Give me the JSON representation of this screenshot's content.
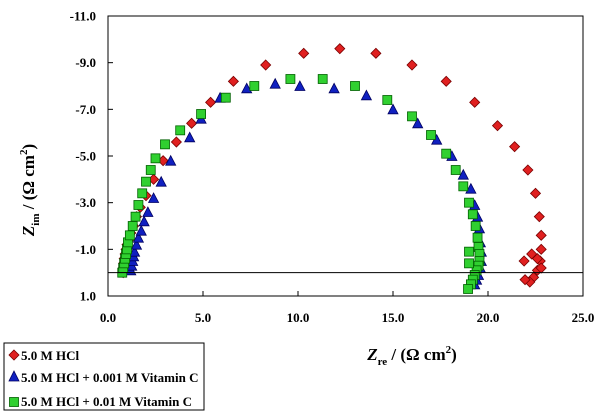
{
  "chart_data": {
    "type": "scatter",
    "x_axis": {
      "range": [
        0,
        25
      ],
      "ticks": [
        0,
        5,
        10,
        15,
        20,
        25
      ],
      "tick_labels": [
        "0.0",
        "5.0",
        "10.0",
        "15.0",
        "20.0",
        "25.0"
      ],
      "label_main": "Z",
      "label_sub": "re",
      "label_unit": " / (Ω cm",
      "label_sup": "2",
      "label_close": ")"
    },
    "y_axis": {
      "range": [
        1,
        -11
      ],
      "ticks": [
        1,
        -1,
        -3,
        -5,
        -7,
        -9,
        -11
      ],
      "tick_labels": [
        "1.0",
        "-1.0",
        "-3.0",
        "-5.0",
        "-7.0",
        "-9.0",
        "-11.0"
      ],
      "label_main": "Z",
      "label_sub": "im",
      "label_unit": " / (Ω cm",
      "label_sup": "2",
      "label_close": ")",
      "reference_line": 0
    },
    "grid": false,
    "legend_position": "bottom-left",
    "series": [
      {
        "name": "5.0 M HCl",
        "marker": "diamond",
        "color": "#e02020",
        "x": [
          0.8,
          0.8,
          0.82,
          0.85,
          0.9,
          0.95,
          1.0,
          1.1,
          1.2,
          1.35,
          1.5,
          1.7,
          2.0,
          2.4,
          2.9,
          3.6,
          4.4,
          5.4,
          6.6,
          8.3,
          10.3,
          12.2,
          14.1,
          16.0,
          17.8,
          19.3,
          20.5,
          21.4,
          22.1,
          22.5,
          22.7,
          22.8,
          22.8,
          22.75,
          22.6,
          22.4,
          22.2,
          21.95,
          21.9,
          22.3,
          22.6,
          22.8
        ],
        "y": [
          0.0,
          -0.2,
          -0.4,
          -0.6,
          -0.8,
          -1.0,
          -1.2,
          -1.4,
          -1.7,
          -2.0,
          -2.4,
          -2.8,
          -3.3,
          -4.0,
          -4.8,
          -5.6,
          -6.4,
          -7.3,
          -8.2,
          -8.9,
          -9.4,
          -9.6,
          -9.4,
          -8.9,
          -8.2,
          -7.3,
          -6.3,
          -5.4,
          -4.4,
          -3.4,
          -2.4,
          -1.6,
          -1.0,
          -0.5,
          -0.1,
          0.2,
          0.4,
          0.3,
          -0.5,
          -0.8,
          -0.6,
          -0.2
        ]
      },
      {
        "name": "5.0 M HCl + 0.001 M Vitamin C",
        "marker": "triangle",
        "color": "#1020c0",
        "x": [
          1.2,
          1.25,
          1.3,
          1.35,
          1.4,
          1.5,
          1.6,
          1.75,
          1.9,
          2.1,
          2.4,
          2.8,
          3.3,
          4.3,
          4.9,
          5.9,
          7.3,
          8.8,
          10.1,
          11.9,
          13.6,
          15.0,
          16.3,
          17.3,
          18.1,
          18.7,
          19.1,
          19.3,
          19.45,
          19.55,
          19.6,
          19.65,
          19.65,
          19.6,
          19.5,
          19.4,
          19.3
        ],
        "y": [
          -0.1,
          -0.3,
          -0.5,
          -0.7,
          -0.9,
          -1.2,
          -1.5,
          -1.8,
          -2.2,
          -2.6,
          -3.2,
          -3.9,
          -4.8,
          -5.8,
          -6.6,
          -7.5,
          -7.9,
          -8.1,
          -8.0,
          -7.9,
          -7.6,
          -7.0,
          -6.4,
          -5.7,
          -5.0,
          -4.2,
          -3.6,
          -2.9,
          -2.4,
          -1.9,
          -1.3,
          -0.9,
          -0.5,
          -0.2,
          0.1,
          0.3,
          0.5
        ]
      },
      {
        "name": "5.0 M HCl + 0.01 M Vitamin C",
        "marker": "square",
        "color": "#30d030",
        "x": [
          0.75,
          0.8,
          0.85,
          0.9,
          0.95,
          1.0,
          1.05,
          1.15,
          1.3,
          1.45,
          1.6,
          1.8,
          2.0,
          2.25,
          2.5,
          3.0,
          3.8,
          4.9,
          6.2,
          7.7,
          9.6,
          11.3,
          13.0,
          14.7,
          16.0,
          17.0,
          17.8,
          18.3,
          18.7,
          19.0,
          19.2,
          19.35,
          19.45,
          19.5,
          19.55,
          19.55,
          19.5,
          19.4,
          19.3,
          19.2,
          19.1,
          18.95,
          19.0,
          19.0
        ],
        "y": [
          0.0,
          -0.2,
          -0.4,
          -0.6,
          -0.8,
          -1.0,
          -1.3,
          -1.6,
          -2.0,
          -2.4,
          -2.9,
          -3.4,
          -3.9,
          -4.4,
          -4.9,
          -5.5,
          -6.1,
          -6.8,
          -7.5,
          -8.0,
          -8.3,
          -8.3,
          -8.0,
          -7.4,
          -6.7,
          -5.9,
          -5.1,
          -4.4,
          -3.7,
          -3.0,
          -2.5,
          -2.0,
          -1.5,
          -1.1,
          -0.8,
          -0.5,
          -0.3,
          -0.1,
          0.1,
          0.3,
          0.5,
          0.7,
          -0.4,
          -0.9
        ]
      }
    ]
  }
}
